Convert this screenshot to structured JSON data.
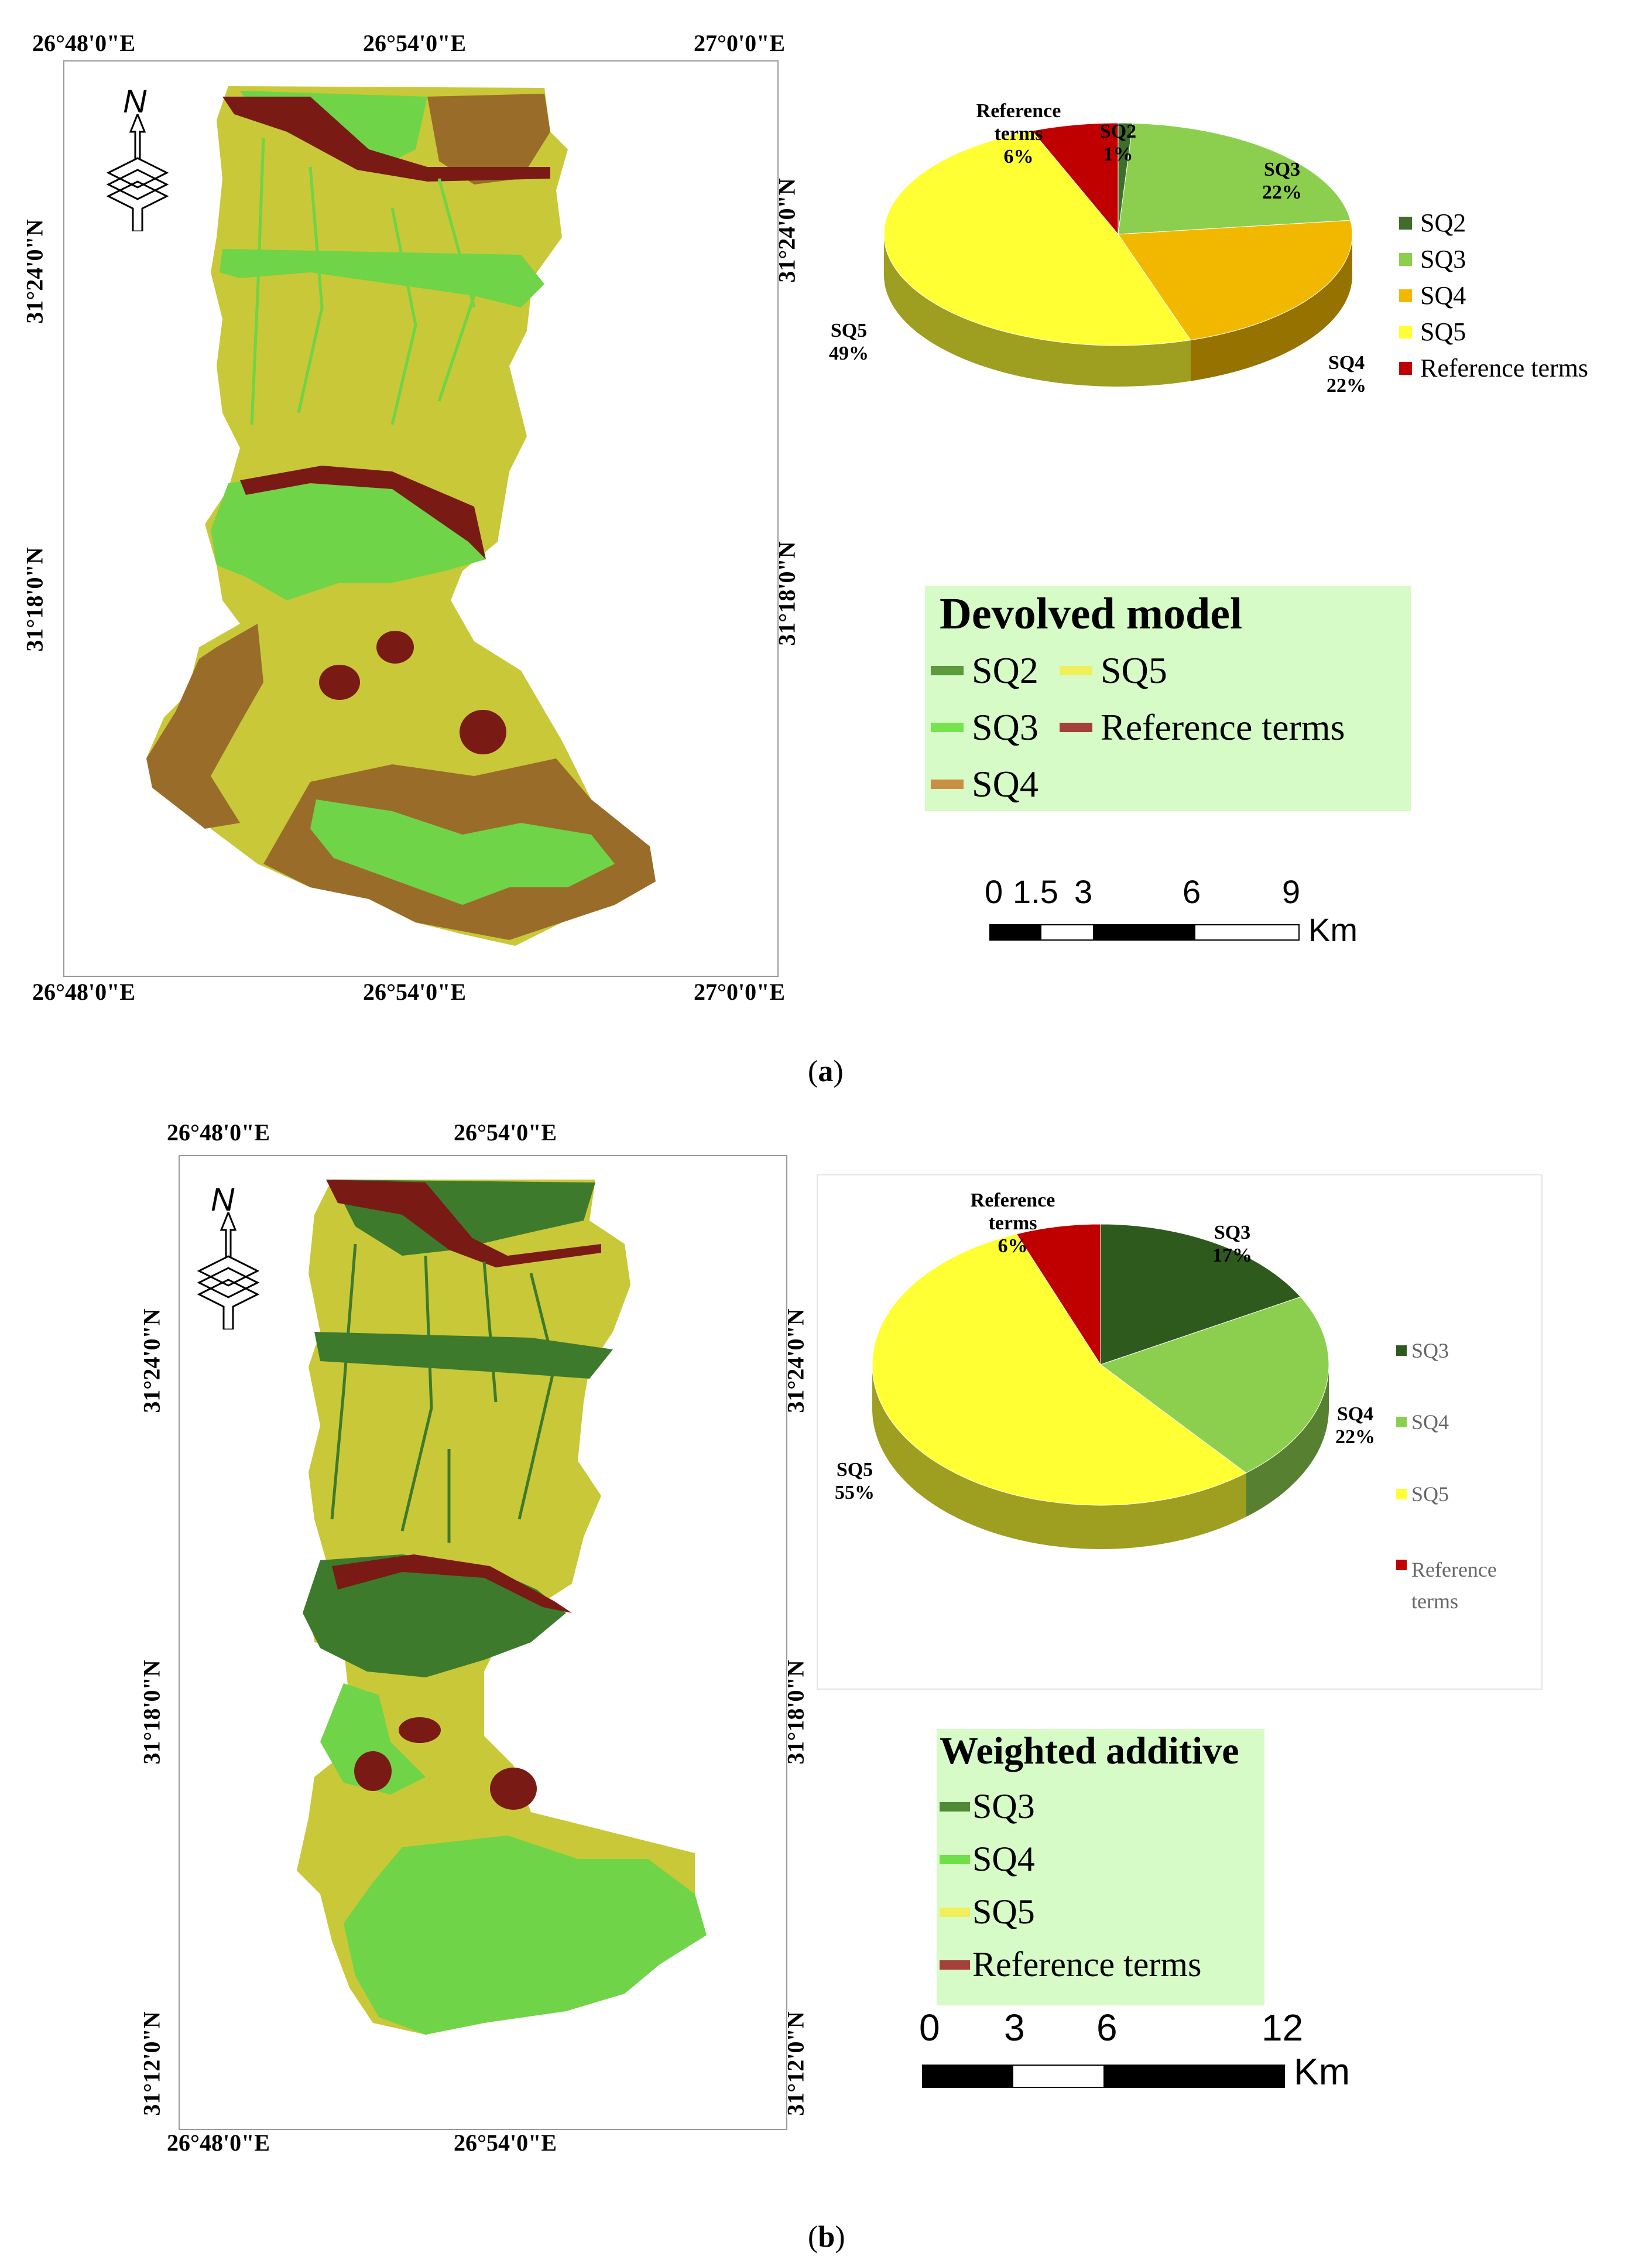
{
  "colors": {
    "sq2_dark": "#3f6e2a",
    "sq3_light": "#8ccf4f",
    "sq4_orange": "#f2b800",
    "sq5_yellow": "#ffff33",
    "ref_red": "#c00000",
    "map_yellow": "#c9c838",
    "map_green": "#6fd447",
    "map_brown": "#9a6c2a",
    "map_darkred": "#7a1a14",
    "map_darkgreen": "#3e7a2c",
    "legend_bg": "#d6fbc6"
  },
  "panel_a": {
    "caption_open": "(",
    "caption_letter": "a",
    "caption_close": ")",
    "coords": {
      "top": [
        "26°48'0\"E",
        "26°54'0\"E",
        "27°0'0\"E"
      ],
      "bottom": [
        "26°48'0\"E",
        "26°54'0\"E",
        "27°0'0\"E"
      ],
      "left": [
        "31°24'0\"N",
        "31°18'0\"N"
      ],
      "right": [
        "31°24'0\"N",
        "31°18'0\"N"
      ]
    },
    "north_label": "N",
    "map_legend": {
      "title": "Devolved model",
      "items": [
        {
          "label": "SQ2",
          "color": "#5c9a3e"
        },
        {
          "label": "SQ5",
          "color": "#f0ef5a"
        },
        {
          "label": "SQ3",
          "color": "#76e34f"
        },
        {
          "label": "Reference terms",
          "color": "#a3403a"
        },
        {
          "label": "SQ4",
          "color": "#c98f43"
        }
      ]
    },
    "scale_bar": {
      "ticks": [
        "0",
        "1.5",
        "3",
        "6",
        "9"
      ],
      "unit": "Km"
    },
    "pie_legend": [
      "SQ2",
      "SQ3",
      "SQ4",
      "SQ5",
      "Reference terms"
    ],
    "pie_labels": [
      {
        "text": "Reference\nterms\n6%"
      },
      {
        "text": "SQ2\n1%"
      },
      {
        "text": "SQ3\n22%"
      },
      {
        "text": "SQ4\n22%"
      },
      {
        "text": "SQ5\n49%"
      }
    ]
  },
  "panel_b": {
    "caption_open": "(",
    "caption_letter": "b",
    "caption_close": ")",
    "coords": {
      "top": [
        "26°48'0\"E",
        "26°54'0\"E"
      ],
      "bottom": [
        "26°48'0\"E",
        "26°54'0\"E"
      ],
      "left": [
        "31°24'0\"N",
        "31°18'0\"N",
        "31°12'0\"N"
      ],
      "right": [
        "31°24'0\"N",
        "31°18'0\"N",
        "31°12'0\"N"
      ]
    },
    "north_label": "N",
    "map_legend": {
      "title": "Weighted additive",
      "items": [
        {
          "label": "SQ3",
          "color": "#4f8a36"
        },
        {
          "label": "SQ4",
          "color": "#6fe04a"
        },
        {
          "label": "SQ5",
          "color": "#f0ef5a"
        },
        {
          "label": "Reference terms",
          "color": "#a3403a"
        }
      ]
    },
    "scale_bar": {
      "ticks": [
        "0",
        "3",
        "6",
        "12"
      ],
      "unit": "Km"
    },
    "pie_legend": [
      "SQ3",
      "SQ4",
      "SQ5",
      "Reference\nterms"
    ],
    "pie_labels": [
      {
        "text": "Reference\nterms\n6%"
      },
      {
        "text": "SQ3\n17%"
      },
      {
        "text": "SQ4\n22%"
      },
      {
        "text": "SQ5\n55%"
      }
    ]
  },
  "chart_data": [
    {
      "type": "pie",
      "categories": [
        "SQ2",
        "SQ3",
        "SQ4",
        "SQ5",
        "Reference terms"
      ],
      "values": [
        1,
        22,
        22,
        49,
        6
      ],
      "colors": [
        "#3f6e2a",
        "#8ccf4f",
        "#f2b800",
        "#ffff33",
        "#c00000"
      ]
    },
    {
      "type": "pie",
      "categories": [
        "SQ3",
        "SQ4",
        "SQ5",
        "Reference terms"
      ],
      "values": [
        17,
        22,
        55,
        6
      ],
      "colors": [
        "#2f5a1e",
        "#8ccf4f",
        "#ffff33",
        "#c00000"
      ]
    }
  ]
}
